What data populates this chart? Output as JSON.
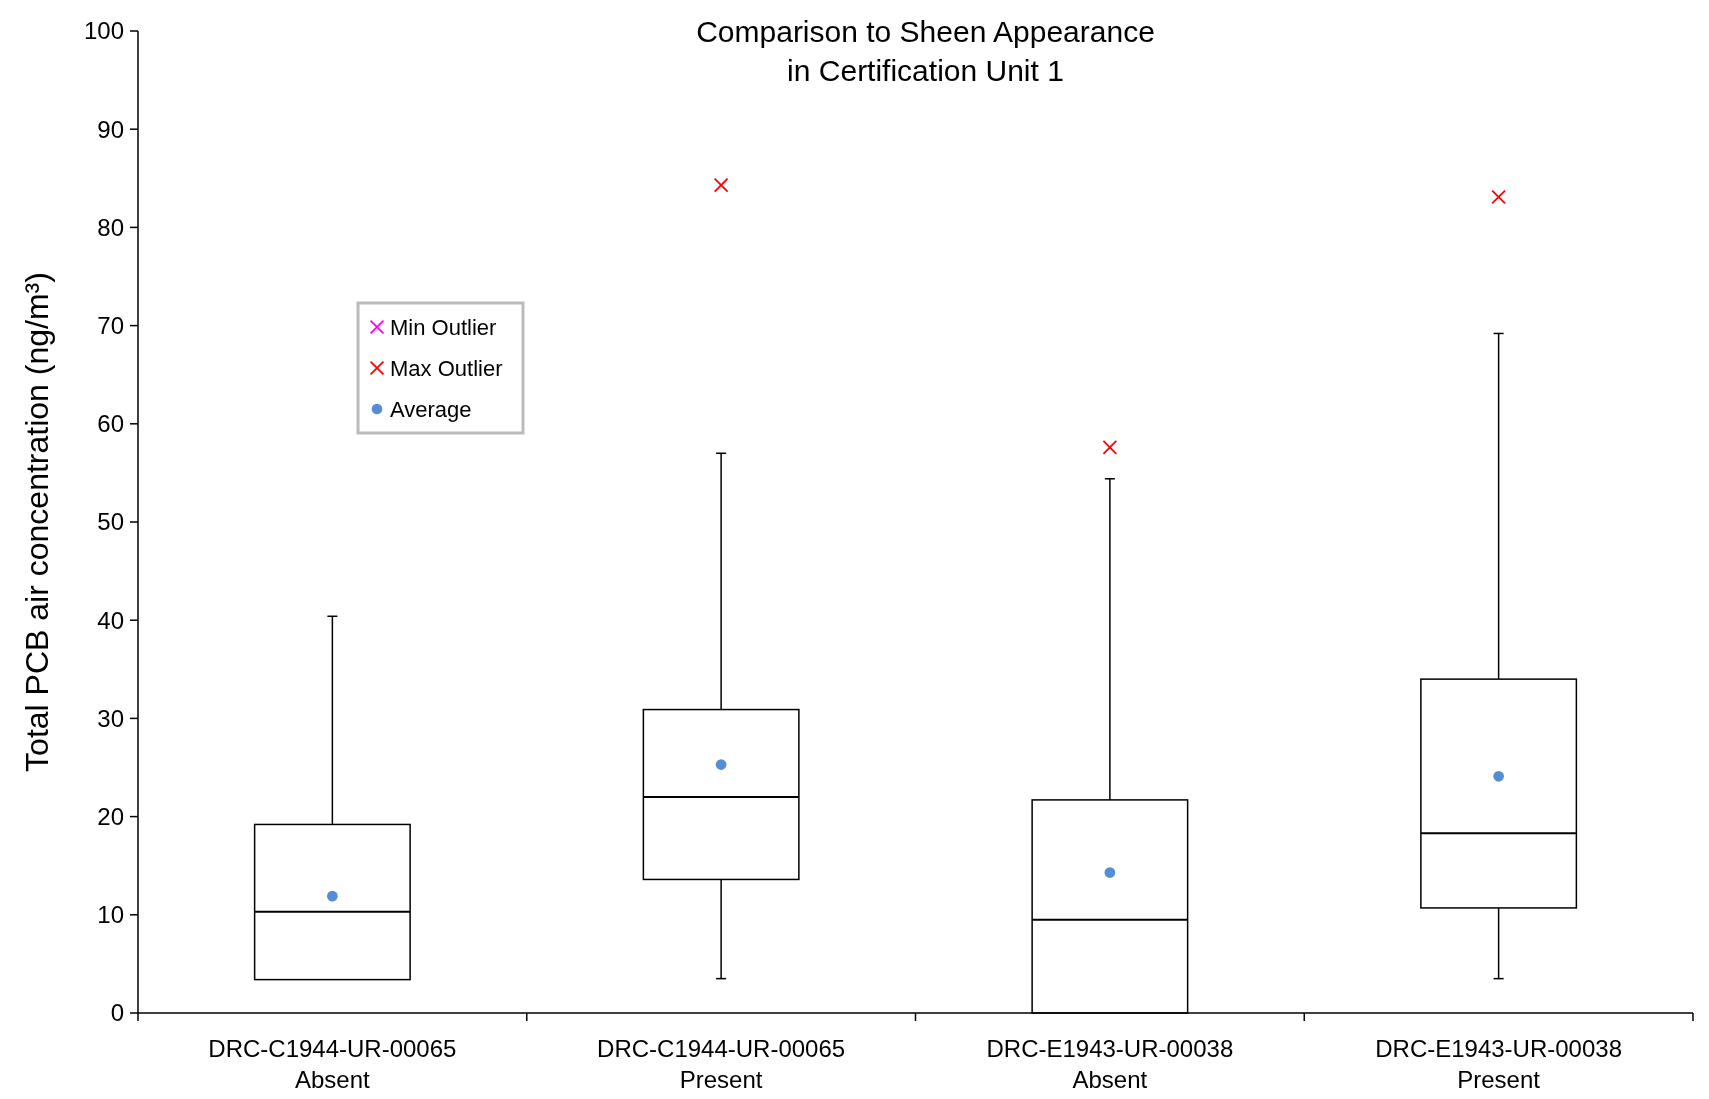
{
  "chart_data": {
    "type": "box",
    "title": "Comparison to Sheen Appearance\nin Certification Unit 1",
    "ylabel": "Total PCB air concentration (ng/m³)",
    "categories": [
      "DRC-C1944-UR-00065\nAbsent",
      "DRC-C1944-UR-00065\nPresent",
      "DRC-E1943-UR-00038\nAbsent",
      "DRC-E1943-UR-00038\nPresent"
    ],
    "boxes": [
      {
        "low": 3.4,
        "q1": 3.4,
        "median": 10.3,
        "q3": 19.2,
        "high": 40.4
      },
      {
        "low": 3.5,
        "q1": 13.6,
        "median": 22.0,
        "q3": 30.9,
        "high": 57.0
      },
      {
        "low": 0,
        "q1": 0,
        "median": 9.5,
        "q3": 21.7,
        "high": 54.4
      },
      {
        "low": 3.5,
        "q1": 10.7,
        "median": 18.3,
        "q3": 34.0,
        "high": 69.2
      }
    ],
    "series": [
      {
        "name": "Min Outlier",
        "type": "scatter",
        "marker": "cross",
        "color": "#ff00ff",
        "values": [
          null,
          null,
          null,
          null
        ]
      },
      {
        "name": "Max Outlier",
        "type": "scatter",
        "marker": "cross",
        "color": "#ff0000",
        "values": [
          null,
          84.3,
          57.6,
          83.1
        ]
      },
      {
        "name": "Average",
        "type": "scatter",
        "marker": "circle",
        "color": "#558ed5",
        "x": [
          "DRC-C1944-UR-00065\nAbsent",
          "DRC-C1944-UR-00065\nPresent",
          "DRC-E1943-UR-00038\nAbsent",
          "DRC-E1943-UR-00038\nPresent"
        ],
        "values": [
          11.9,
          25.3,
          14.3,
          24.1
        ]
      }
    ],
    "ylim": [
      0,
      100
    ],
    "yticks": [
      0,
      10,
      20,
      30,
      40,
      50,
      60,
      70,
      80,
      90,
      100
    ],
    "grid": false,
    "legend": "top left"
  }
}
